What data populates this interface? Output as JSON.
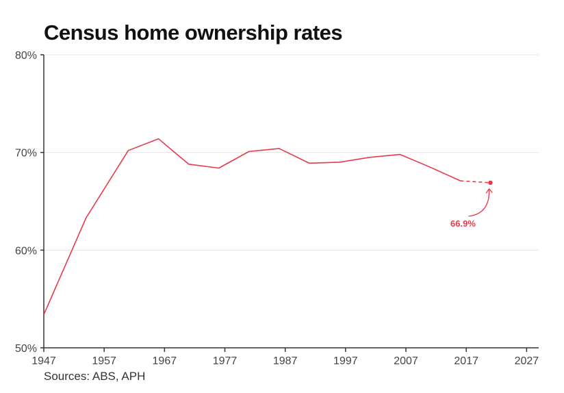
{
  "chart_data": {
    "type": "line",
    "title": "Census home ownership rates",
    "xlabel": "",
    "ylabel": "",
    "xlim": [
      1947,
      2029
    ],
    "ylim": [
      50,
      80
    ],
    "x_ticks": [
      1947,
      1957,
      1967,
      1977,
      1987,
      1997,
      2007,
      2017,
      2027
    ],
    "y_ticks": [
      50,
      60,
      70,
      80
    ],
    "y_tick_labels": [
      "50%",
      "60%",
      "70%",
      "80%"
    ],
    "grid": true,
    "series": [
      {
        "color": "#e8394a",
        "x": [
          1947,
          1954,
          1961,
          1966,
          1971,
          1976,
          1981,
          1986,
          1991,
          1996,
          2001,
          2006,
          2011,
          2016,
          2021
        ],
        "values": [
          53.4,
          63.3,
          70.2,
          71.4,
          68.8,
          68.4,
          70.1,
          70.4,
          68.9,
          69.0,
          69.5,
          69.8,
          68.5,
          67.1,
          66.9
        ],
        "projected_from_x": 2016
      }
    ],
    "annotations": [
      {
        "text": "66.9%",
        "x": 2021,
        "y": 66.9,
        "color": "#e8394a"
      }
    ]
  },
  "footer": {
    "source": "Sources: ABS, APH"
  }
}
